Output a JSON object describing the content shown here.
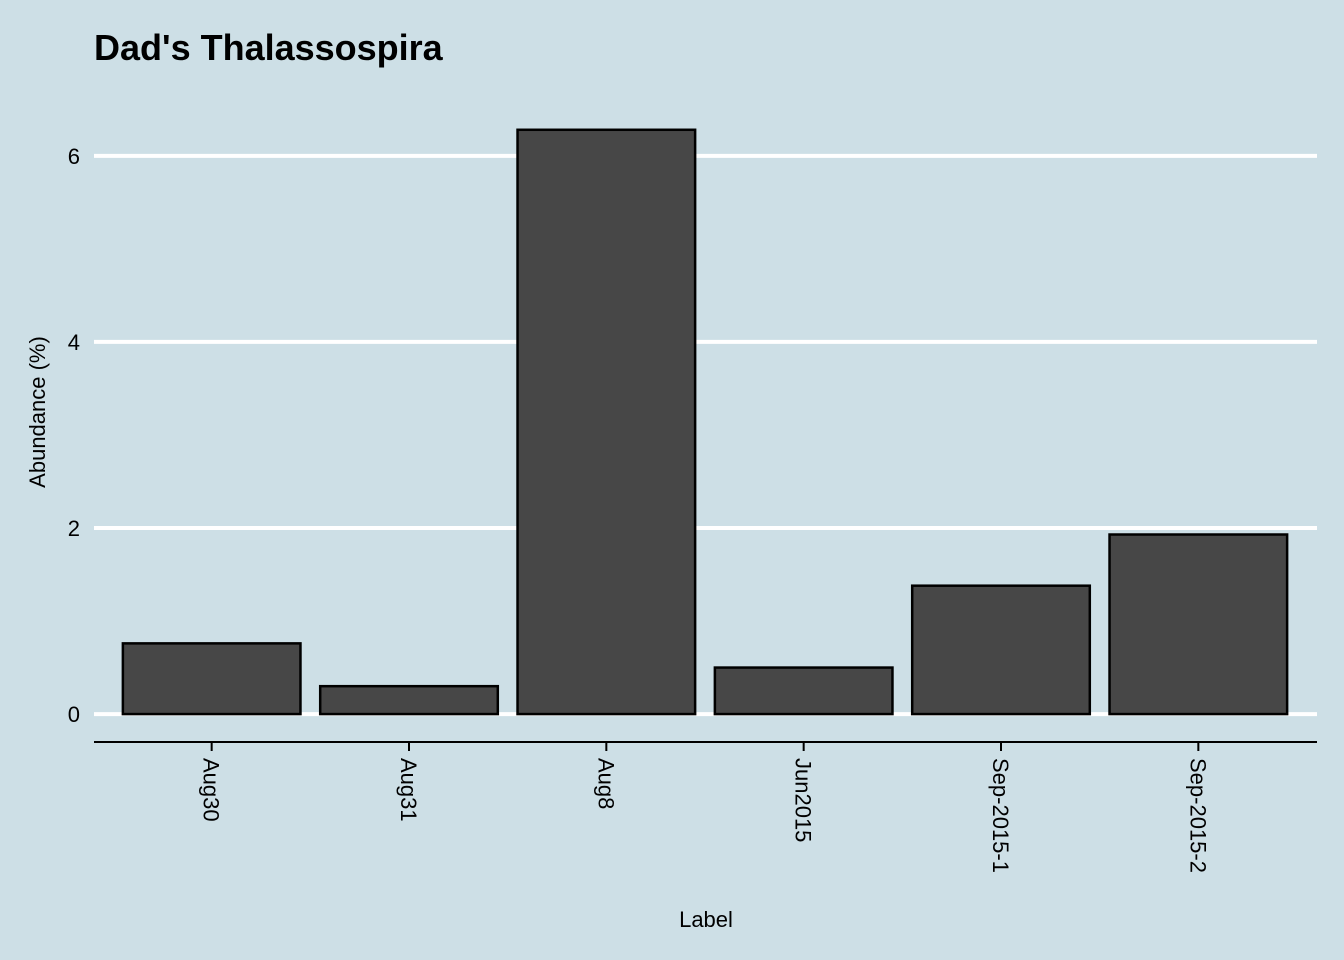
{
  "chart_data": {
    "type": "bar",
    "title": "Dad's Thalassospira",
    "xlabel": "Label",
    "ylabel": "Abundance (%)",
    "categories": [
      "Aug30",
      "Aug31",
      "Aug8",
      "Jun2015",
      "Sep-2015-1",
      "Sep-2015-2"
    ],
    "values": [
      0.76,
      0.3,
      6.28,
      0.5,
      1.38,
      1.93
    ],
    "ylim": [
      -0.3,
      6.6
    ],
    "yticks": [
      0,
      2,
      4,
      6
    ],
    "ytick_labels": [
      "0",
      "2",
      "4",
      "6"
    ],
    "grid": "horizontal-major",
    "legend": "none"
  },
  "colors": {
    "background": "#cddfe6",
    "bar_fill": "#474747",
    "bar_stroke": "#000000",
    "grid": "#ffffff",
    "axis_line": "#000000",
    "text": "#000000"
  }
}
